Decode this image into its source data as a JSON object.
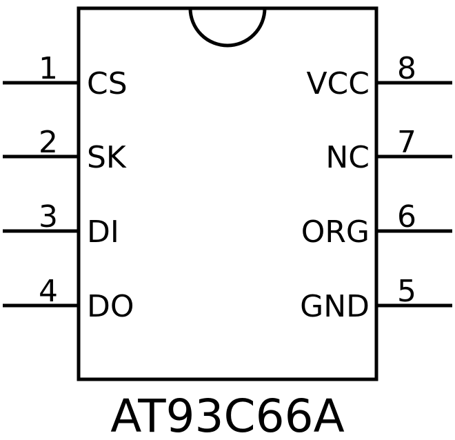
{
  "chip": {
    "part_number": "AT93C66A",
    "package_notch": "pin-1-notch",
    "line_color": "#000000",
    "background_color": "#ffffff",
    "left_pins": [
      {
        "number": "1",
        "label": "CS"
      },
      {
        "number": "2",
        "label": "SK"
      },
      {
        "number": "3",
        "label": "DI"
      },
      {
        "number": "4",
        "label": "DO"
      }
    ],
    "right_pins": [
      {
        "number": "8",
        "label": "VCC"
      },
      {
        "number": "7",
        "label": "NC"
      },
      {
        "number": "6",
        "label": "ORG"
      },
      {
        "number": "5",
        "label": "GND"
      }
    ]
  }
}
